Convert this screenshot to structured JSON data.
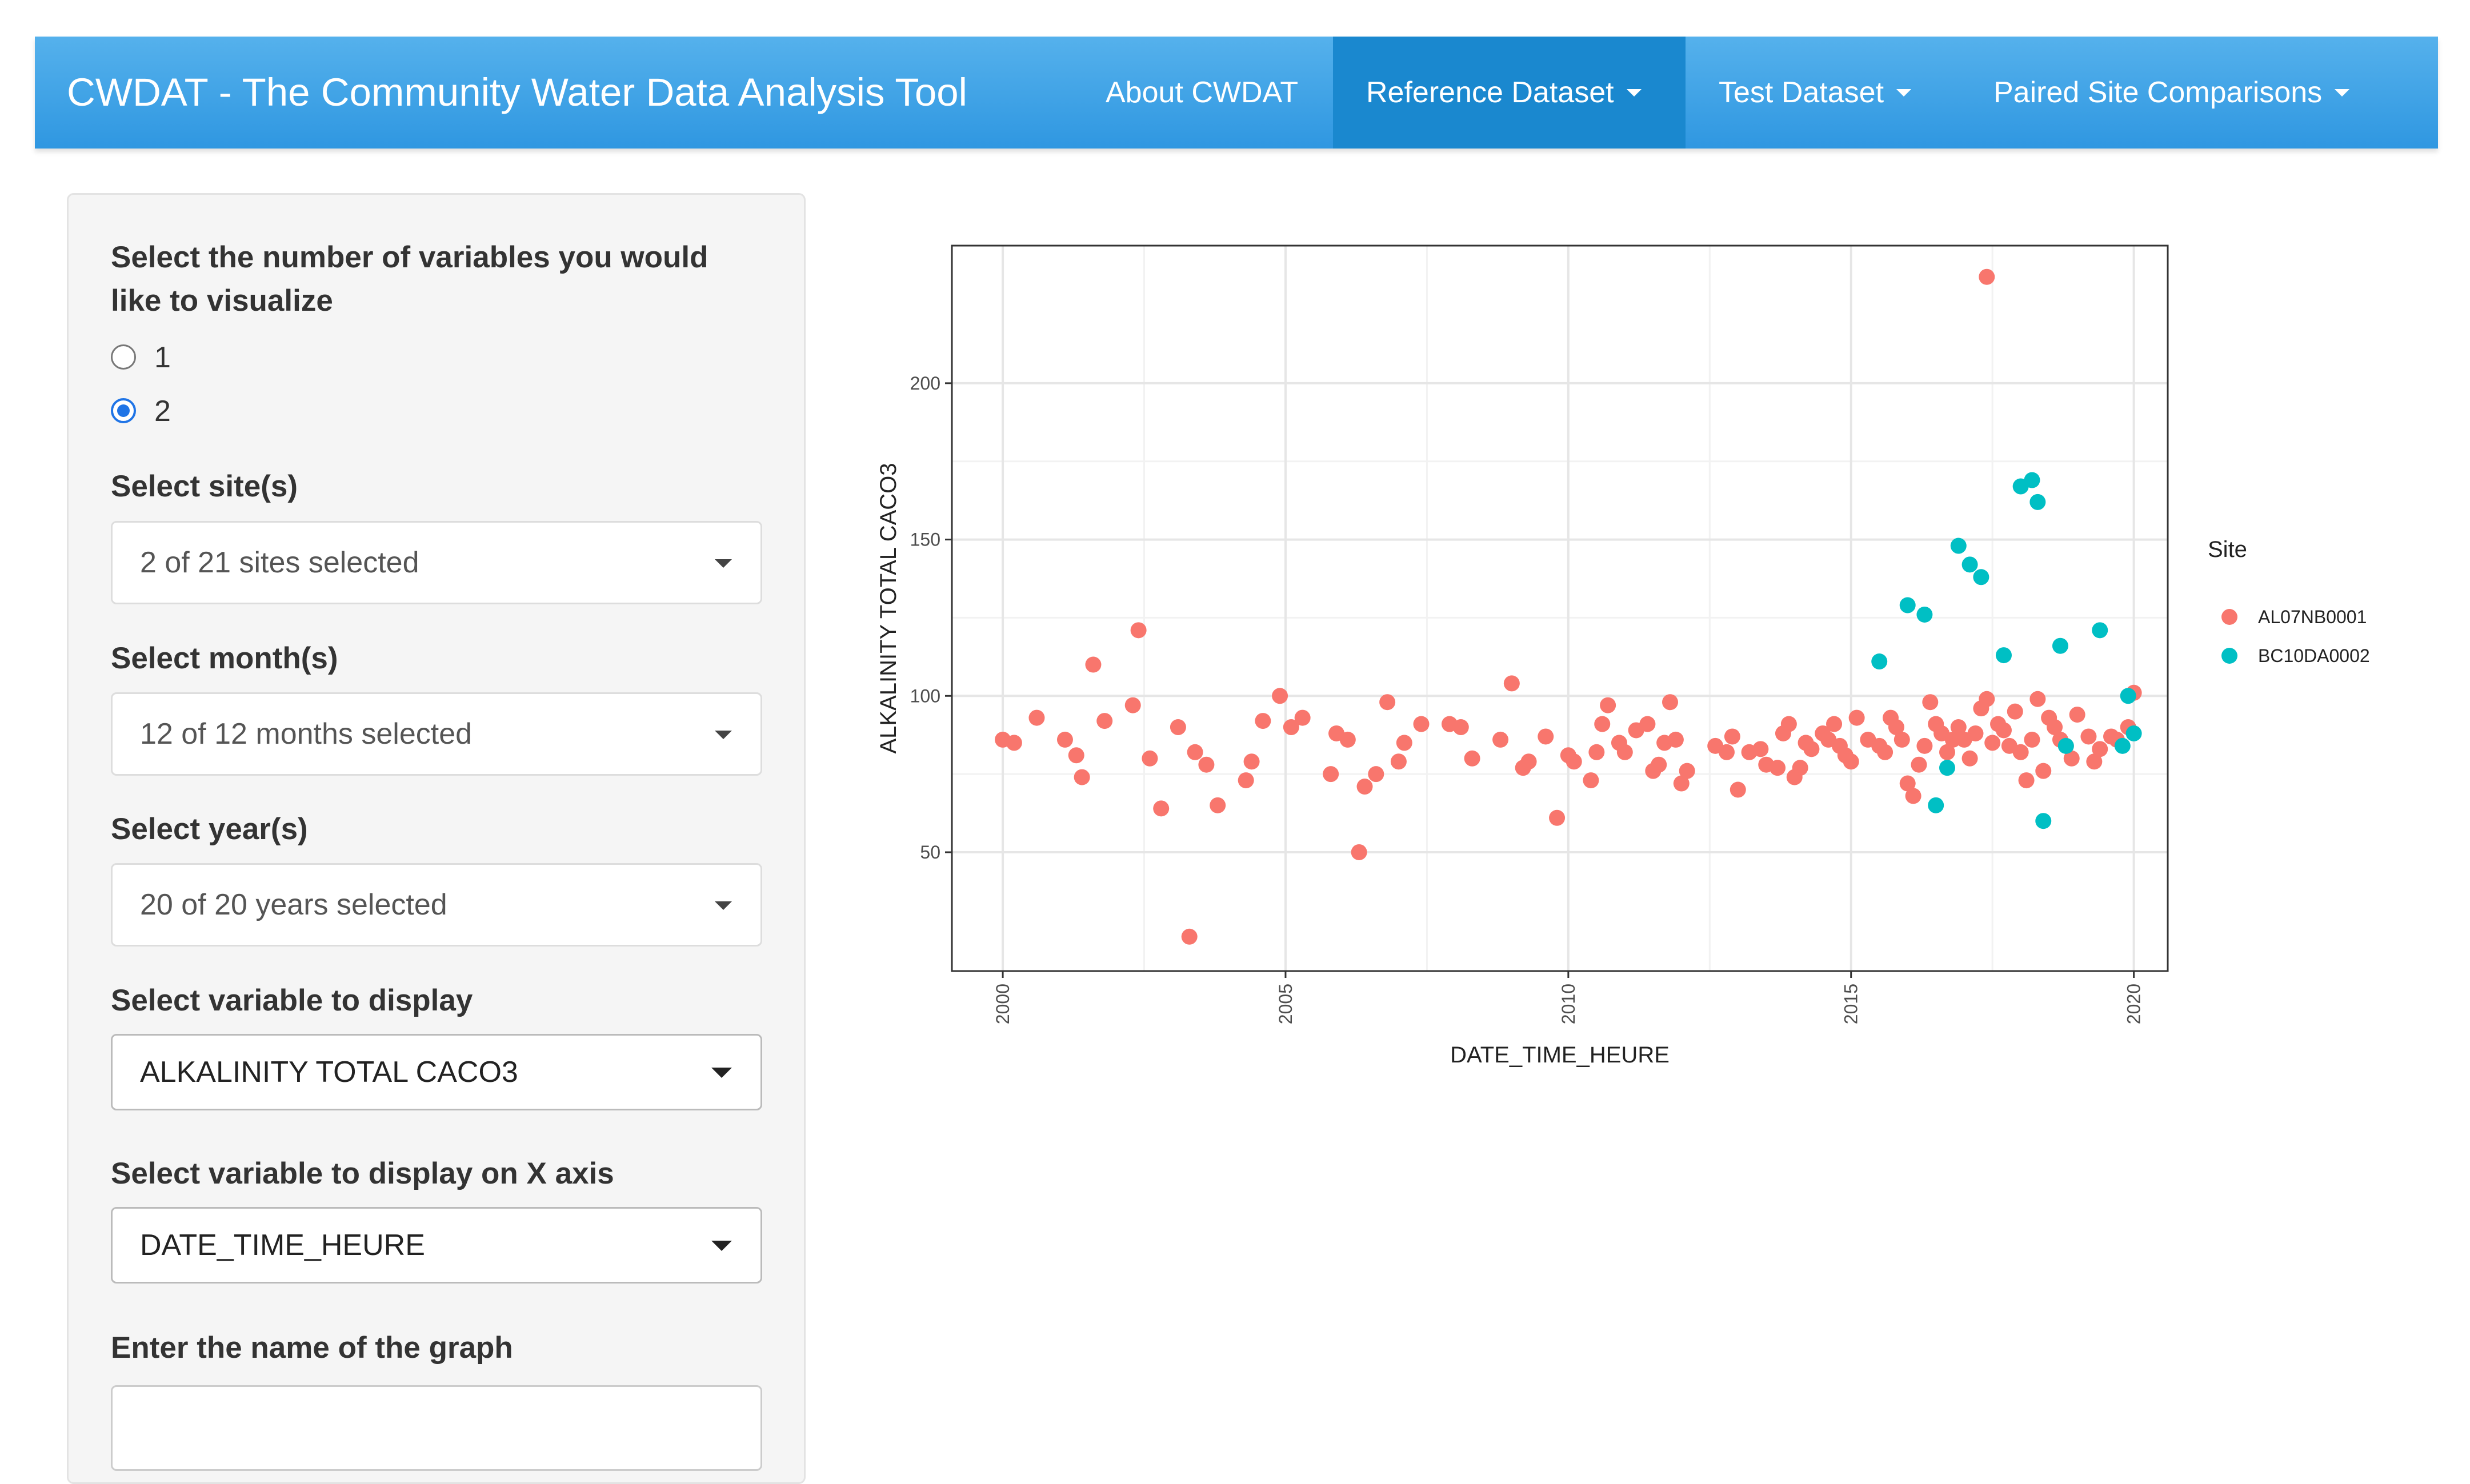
{
  "navbar": {
    "brand": "CWDAT - The Community Water Data Analysis Tool",
    "items": [
      {
        "label": "About CWDAT",
        "dropdown": false,
        "active": false
      },
      {
        "label": "Reference Dataset",
        "dropdown": true,
        "active": true
      },
      {
        "label": "Test Dataset",
        "dropdown": true,
        "active": false
      },
      {
        "label": "Paired Site Comparisons",
        "dropdown": true,
        "active": false
      }
    ]
  },
  "sidebar": {
    "num_vars_label": [
      "Select the number of variables you would",
      "like to visualize"
    ],
    "radio_options": [
      "1",
      "2"
    ],
    "radio_selected": "2",
    "sites_label": "Select site(s)",
    "sites_value": "2 of 21 sites selected",
    "months_label": "Select month(s)",
    "months_value": "12 of 12 months selected",
    "years_label": "Select year(s)",
    "years_value": "20 of 20 years selected",
    "variable_label": "Select variable to display",
    "variable_value": "ALKALINITY TOTAL CACO3",
    "xvar_label": "Select variable to display on X axis",
    "xvar_value": "DATE_TIME_HEURE",
    "graph_name_label": "Enter the name of the graph",
    "graph_name_value": ""
  },
  "colors": {
    "navbar": "#3aa0e6",
    "navbar_active": "#1a88cf",
    "series_AL07NB0001": "#f8766d",
    "series_BC10DA0002": "#00bfc4"
  },
  "chart_data": {
    "type": "scatter",
    "xlabel": "DATE_TIME_HEURE",
    "ylabel": "ALKALINITY TOTAL CACO3",
    "xlim": [
      1999.1,
      2020.6
    ],
    "ylim": [
      12,
      244
    ],
    "xticks": [
      2000,
      2005,
      2010,
      2015,
      2020
    ],
    "yticks": [
      50,
      100,
      150,
      200
    ],
    "grid": true,
    "legend": {
      "title": "Site",
      "position": "right"
    },
    "series": [
      {
        "name": "AL07NB0001",
        "color": "#f8766d",
        "points": [
          [
            2000.0,
            86
          ],
          [
            2000.2,
            85
          ],
          [
            2000.6,
            93
          ],
          [
            2001.1,
            86
          ],
          [
            2001.3,
            81
          ],
          [
            2001.4,
            74
          ],
          [
            2001.6,
            110
          ],
          [
            2001.8,
            92
          ],
          [
            2002.3,
            97
          ],
          [
            2002.4,
            121
          ],
          [
            2002.6,
            80
          ],
          [
            2002.8,
            64
          ],
          [
            2003.1,
            90
          ],
          [
            2003.3,
            23
          ],
          [
            2003.4,
            82
          ],
          [
            2003.6,
            78
          ],
          [
            2003.8,
            65
          ],
          [
            2004.3,
            73
          ],
          [
            2004.4,
            79
          ],
          [
            2004.6,
            92
          ],
          [
            2004.9,
            100
          ],
          [
            2005.1,
            90
          ],
          [
            2005.3,
            93
          ],
          [
            2005.8,
            75
          ],
          [
            2005.9,
            88
          ],
          [
            2006.1,
            86
          ],
          [
            2006.3,
            50
          ],
          [
            2006.4,
            71
          ],
          [
            2006.6,
            75
          ],
          [
            2006.8,
            98
          ],
          [
            2007.0,
            79
          ],
          [
            2007.1,
            85
          ],
          [
            2007.4,
            91
          ],
          [
            2007.9,
            91
          ],
          [
            2008.1,
            90
          ],
          [
            2008.3,
            80
          ],
          [
            2008.8,
            86
          ],
          [
            2009.0,
            104
          ],
          [
            2009.2,
            77
          ],
          [
            2009.3,
            79
          ],
          [
            2009.6,
            87
          ],
          [
            2009.8,
            61
          ],
          [
            2010.0,
            81
          ],
          [
            2010.1,
            79
          ],
          [
            2010.4,
            73
          ],
          [
            2010.5,
            82
          ],
          [
            2010.6,
            91
          ],
          [
            2010.7,
            97
          ],
          [
            2010.9,
            85
          ],
          [
            2011.0,
            82
          ],
          [
            2011.2,
            89
          ],
          [
            2011.4,
            91
          ],
          [
            2011.5,
            76
          ],
          [
            2011.6,
            78
          ],
          [
            2011.7,
            85
          ],
          [
            2011.8,
            98
          ],
          [
            2011.9,
            86
          ],
          [
            2012.0,
            72
          ],
          [
            2012.1,
            76
          ],
          [
            2012.6,
            84
          ],
          [
            2012.8,
            82
          ],
          [
            2012.9,
            87
          ],
          [
            2013.0,
            70
          ],
          [
            2013.2,
            82
          ],
          [
            2013.4,
            83
          ],
          [
            2013.5,
            78
          ],
          [
            2013.7,
            77
          ],
          [
            2013.8,
            88
          ],
          [
            2014.0,
            74
          ],
          [
            2014.1,
            77
          ],
          [
            2014.3,
            83
          ],
          [
            2014.5,
            88
          ],
          [
            2014.6,
            86
          ],
          [
            2014.7,
            91
          ],
          [
            2014.8,
            84
          ],
          [
            2014.9,
            81
          ],
          [
            2015.0,
            79
          ],
          [
            2015.1,
            93
          ],
          [
            2015.3,
            86
          ],
          [
            2015.5,
            84
          ],
          [
            2015.7,
            93
          ],
          [
            2015.8,
            90
          ],
          [
            2015.9,
            86
          ],
          [
            2016.0,
            72
          ],
          [
            2016.1,
            68
          ],
          [
            2016.2,
            78
          ],
          [
            2016.3,
            84
          ],
          [
            2016.5,
            91
          ],
          [
            2016.6,
            88
          ],
          [
            2016.8,
            86
          ],
          [
            2017.0,
            86
          ],
          [
            2017.1,
            80
          ],
          [
            2017.3,
            96
          ],
          [
            2017.4,
            99
          ],
          [
            2017.5,
            85
          ],
          [
            2017.6,
            91
          ],
          [
            2017.7,
            89
          ],
          [
            2017.9,
            95
          ],
          [
            2018.0,
            82
          ],
          [
            2018.1,
            73
          ],
          [
            2018.2,
            86
          ],
          [
            2018.3,
            99
          ],
          [
            2018.5,
            93
          ],
          [
            2018.6,
            90
          ],
          [
            2018.7,
            86
          ],
          [
            2018.9,
            80
          ],
          [
            2019.0,
            94
          ],
          [
            2019.2,
            87
          ],
          [
            2019.3,
            79
          ],
          [
            2019.4,
            83
          ],
          [
            2019.6,
            87
          ],
          [
            2019.7,
            86
          ],
          [
            2019.9,
            90
          ],
          [
            2020.0,
            101
          ],
          [
            2017.4,
            234
          ],
          [
            2016.4,
            98
          ],
          [
            2016.9,
            90
          ],
          [
            2017.8,
            84
          ],
          [
            2018.4,
            76
          ],
          [
            2015.6,
            82
          ],
          [
            2014.2,
            85
          ],
          [
            2013.9,
            91
          ],
          [
            2016.7,
            82
          ],
          [
            2017.2,
            88
          ],
          [
            2018.8,
            84
          ]
        ]
      },
      {
        "name": "BC10DA0002",
        "color": "#00bfc4",
        "points": [
          [
            2015.5,
            111
          ],
          [
            2016.0,
            129
          ],
          [
            2016.3,
            126
          ],
          [
            2016.5,
            65
          ],
          [
            2016.7,
            77
          ],
          [
            2016.9,
            148
          ],
          [
            2017.1,
            142
          ],
          [
            2017.3,
            138
          ],
          [
            2017.7,
            113
          ],
          [
            2018.0,
            167
          ],
          [
            2018.2,
            169
          ],
          [
            2018.3,
            162
          ],
          [
            2018.4,
            60
          ],
          [
            2018.7,
            116
          ],
          [
            2018.8,
            84
          ],
          [
            2019.4,
            121
          ],
          [
            2019.8,
            84
          ],
          [
            2019.9,
            100
          ],
          [
            2020.0,
            88
          ]
        ]
      }
    ]
  }
}
